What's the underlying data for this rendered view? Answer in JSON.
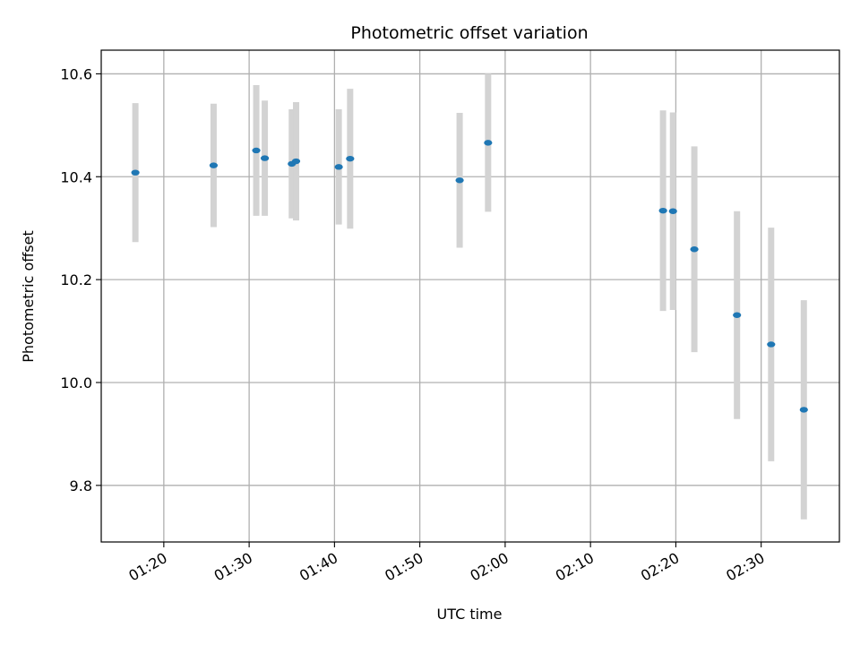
{
  "chart_data": {
    "type": "scatter",
    "title": "Photometric offset variation",
    "xlabel": "UTC time",
    "ylabel": "Photometric offset",
    "xlim": [
      "01:12:40",
      "02:39:10"
    ],
    "ylim": [
      9.69,
      10.646
    ],
    "x_ticks": [
      "01:20",
      "01:30",
      "01:40",
      "01:50",
      "02:00",
      "02:10",
      "02:20",
      "02:30"
    ],
    "y_ticks": [
      "9.8",
      "10.0",
      "10.2",
      "10.4",
      "10.6"
    ],
    "grid": true,
    "colors": {
      "point": "#1f77b4",
      "errorbar": "#d3d3d3",
      "grid": "#b0b0b0"
    },
    "points": [
      {
        "x": "01:16:40",
        "y": 10.408,
        "err": 0.135
      },
      {
        "x": "01:25:50",
        "y": 10.422,
        "err": 0.12
      },
      {
        "x": "01:30:50",
        "y": 10.451,
        "err": 0.127
      },
      {
        "x": "01:31:50",
        "y": 10.436,
        "err": 0.112
      },
      {
        "x": "01:35:00",
        "y": 10.425,
        "err": 0.106
      },
      {
        "x": "01:35:30",
        "y": 10.43,
        "err": 0.115
      },
      {
        "x": "01:40:30",
        "y": 10.419,
        "err": 0.112
      },
      {
        "x": "01:41:50",
        "y": 10.435,
        "err": 0.136
      },
      {
        "x": "01:54:40",
        "y": 10.393,
        "err": 0.131
      },
      {
        "x": "01:58:00",
        "y": 10.466,
        "err": 0.134
      },
      {
        "x": "02:18:30",
        "y": 10.334,
        "err": 0.195
      },
      {
        "x": "02:19:40",
        "y": 10.333,
        "err": 0.192
      },
      {
        "x": "02:22:10",
        "y": 10.259,
        "err": 0.2
      },
      {
        "x": "02:27:10",
        "y": 10.131,
        "err": 0.202
      },
      {
        "x": "02:31:10",
        "y": 10.074,
        "err": 0.227
      },
      {
        "x": "02:35:00",
        "y": 9.947,
        "err": 0.213
      }
    ]
  }
}
